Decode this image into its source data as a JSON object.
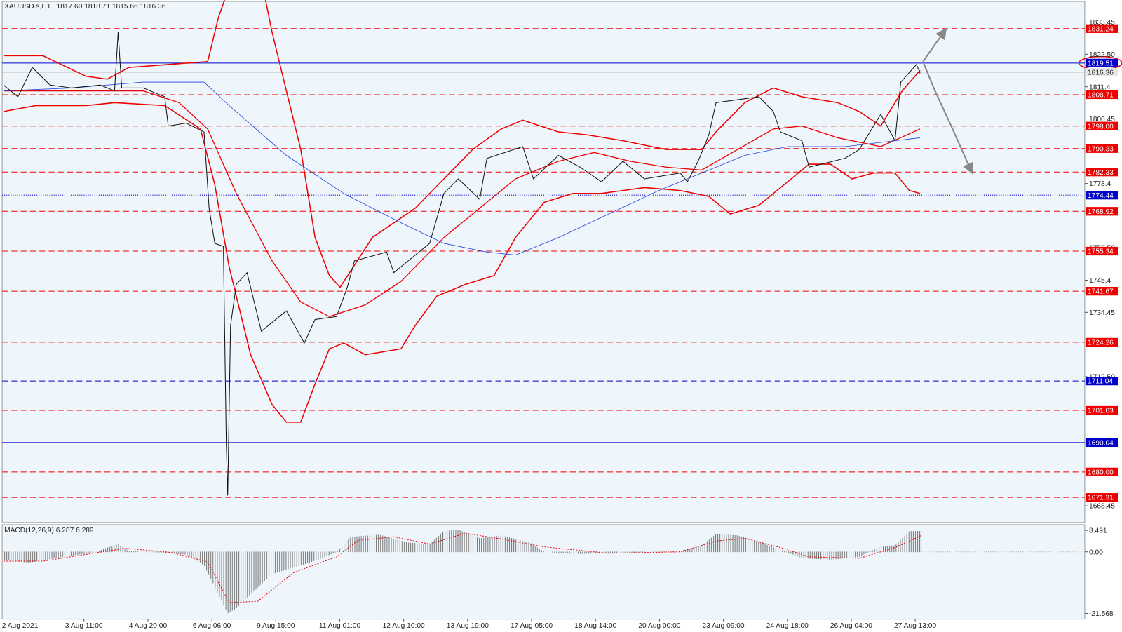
{
  "header": {
    "symbol": "XAUUSD.s,H1",
    "quote": "1817.60 1818.71 1815.66 1816.36"
  },
  "price_axis": {
    "ticks": [
      1833.45,
      {
        "value": 1822.5,
        "label": "1822.50"
      },
      1811.4,
      1800.45,
      1778.4,
      {
        "value": 1756.5,
        "label": "1756.50"
      },
      1745.4,
      1734.45,
      {
        "value": 1712.5,
        "label": "1712.50"
      },
      1668.45
    ]
  },
  "levels": [
    {
      "value": 1831.24,
      "color": "red"
    },
    {
      "value": 1819.51,
      "color": "blue"
    },
    {
      "value": 1816.36,
      "color": "gray"
    },
    {
      "value": 1808.71,
      "color": "red"
    },
    {
      "value": 1798,
      "label": "1798.00",
      "color": "red"
    },
    {
      "value": 1790.33,
      "color": "red"
    },
    {
      "value": 1782.33,
      "color": "red"
    },
    {
      "value": 1774.44,
      "color": "blue"
    },
    {
      "value": 1768.92,
      "color": "red"
    },
    {
      "value": 1755.34,
      "color": "red"
    },
    {
      "value": 1741.67,
      "color": "red"
    },
    {
      "value": 1724.26,
      "color": "red"
    },
    {
      "value": 1711.04,
      "color": "blue"
    },
    {
      "value": 1701.03,
      "color": "red"
    },
    {
      "value": 1690.04,
      "color": "blue"
    },
    {
      "value": 1680,
      "label": "1680.00",
      "color": "red"
    },
    {
      "value": 1671.31,
      "color": "red"
    }
  ],
  "time_axis": [
    "2 Aug 2021",
    "3 Aug 11:00",
    "4 Aug 20:00",
    "6 Aug 06:00",
    "9 Aug 15:00",
    "11 Aug 01:00",
    "12 Aug 10:00",
    "13 Aug 19:00",
    "17 Aug 05:00",
    "18 Aug 14:00",
    "20 Aug 00:00",
    "23 Aug 09:00",
    "24 Aug 18:00",
    "26 Aug 04:00",
    "27 Aug 13:00"
  ],
  "macd": {
    "title": "MACD(12,26,9) 6.287 6.289",
    "ticks": [
      {
        "value": 8.491,
        "label": "8.491"
      },
      {
        "value": 0,
        "label": "0.00"
      },
      {
        "value": -21.568,
        "label": "-21.568"
      }
    ]
  }
}
